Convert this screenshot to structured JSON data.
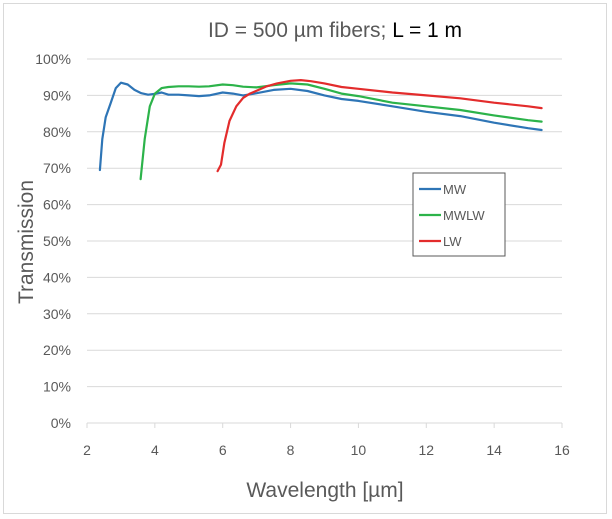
{
  "colors": {
    "MW": "#2E75B6",
    "MWLW": "#2CB34A",
    "LW": "#E32C2C",
    "grid": "#d9d9d9",
    "text": "#595959"
  },
  "chart_data": {
    "type": "line",
    "title_part1": "ID = 500 µm fibers; ",
    "title_part2": "L = 1 m",
    "xlabel": "Wavelength [µm]",
    "ylabel": "Transmission",
    "xlim": [
      2,
      16
    ],
    "ylim": [
      0,
      100
    ],
    "xticks": [
      2,
      4,
      6,
      8,
      10,
      12,
      14,
      16
    ],
    "yticks": [
      "0%",
      "10%",
      "20%",
      "30%",
      "40%",
      "50%",
      "60%",
      "70%",
      "80%",
      "90%",
      "100%"
    ],
    "grid": true,
    "legend_position": "right-middle",
    "series": [
      {
        "name": "MW",
        "colorKey": "MW",
        "x": [
          2.38,
          2.45,
          2.55,
          2.7,
          2.85,
          3.0,
          3.2,
          3.4,
          3.6,
          3.8,
          4.0,
          4.2,
          4.4,
          4.7,
          5.0,
          5.3,
          5.6,
          6.0,
          6.3,
          6.6,
          7.0,
          7.5,
          8.0,
          8.5,
          9.0,
          9.5,
          10.0,
          11.0,
          12.0,
          13.0,
          14.0,
          15.0,
          15.4
        ],
        "y": [
          69.5,
          78,
          84,
          88,
          92,
          93.5,
          93,
          91.5,
          90.6,
          90.2,
          90.4,
          90.8,
          90.2,
          90.2,
          90.0,
          89.8,
          90.0,
          90.8,
          90.5,
          90.0,
          90.6,
          91.5,
          91.8,
          91.2,
          90.0,
          89.0,
          88.5,
          87.0,
          85.5,
          84.3,
          82.5,
          81.0,
          80.5
        ]
      },
      {
        "name": "MWLW",
        "colorKey": "MWLW",
        "x": [
          3.58,
          3.7,
          3.85,
          4.0,
          4.2,
          4.4,
          4.7,
          5.0,
          5.3,
          5.6,
          6.0,
          6.3,
          6.6,
          7.0,
          7.5,
          8.0,
          8.5,
          9.0,
          9.5,
          10.0,
          11.0,
          12.0,
          13.0,
          14.0,
          15.0,
          15.4
        ],
        "y": [
          67,
          78,
          87,
          90.5,
          92,
          92.3,
          92.5,
          92.5,
          92.4,
          92.5,
          93.0,
          92.8,
          92.4,
          92.2,
          92.8,
          93.3,
          93.0,
          91.8,
          90.5,
          89.8,
          88.0,
          87.0,
          86.0,
          84.5,
          83.2,
          82.8
        ]
      },
      {
        "name": "LW",
        "colorKey": "LW",
        "x": [
          5.85,
          5.95,
          6.05,
          6.2,
          6.4,
          6.6,
          6.8,
          7.0,
          7.3,
          7.6,
          8.0,
          8.3,
          8.6,
          9.0,
          9.5,
          10.0,
          11.0,
          12.0,
          13.0,
          14.0,
          15.0,
          15.4
        ],
        "y": [
          69.2,
          71,
          77,
          83,
          87,
          89.3,
          90.5,
          91.3,
          92.5,
          93.3,
          94.0,
          94.2,
          93.9,
          93.3,
          92.3,
          91.8,
          90.8,
          90.0,
          89.2,
          88.0,
          87.0,
          86.5
        ]
      }
    ]
  }
}
